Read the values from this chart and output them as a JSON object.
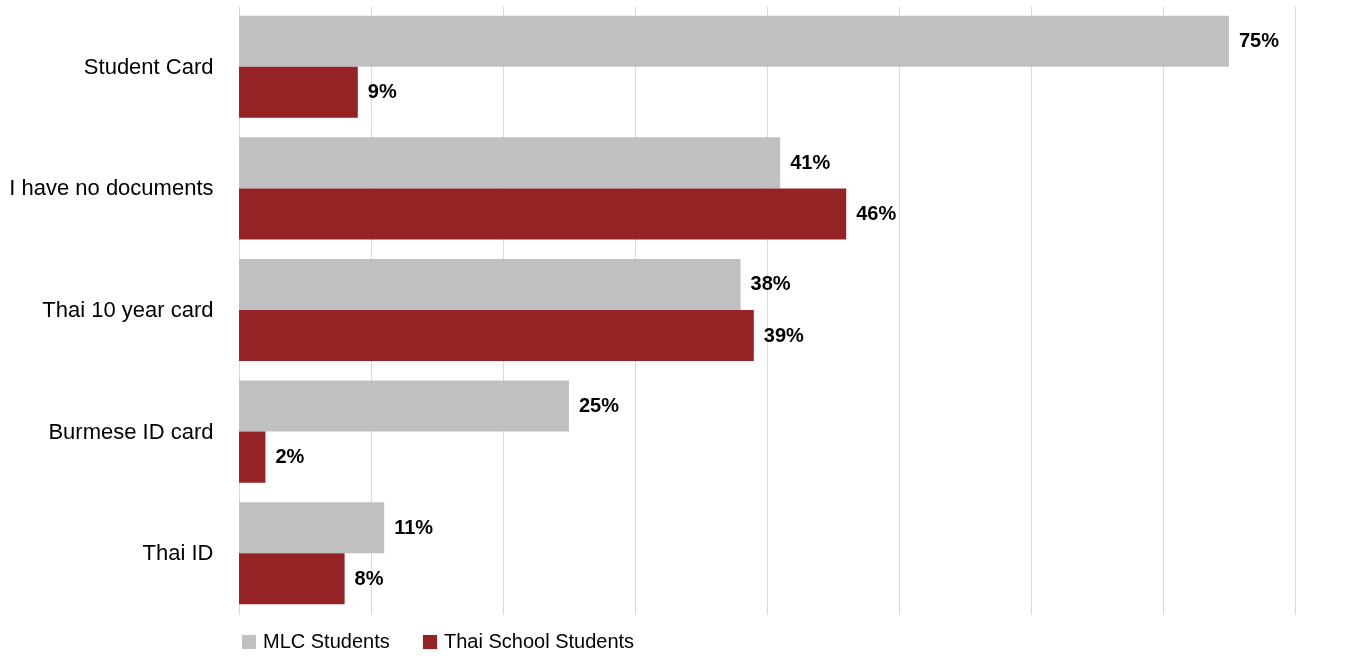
{
  "chart_data": {
    "type": "bar",
    "orientation": "horizontal",
    "categories": [
      "Student Card",
      "I have no documents",
      "Thai 10 year card",
      "Burmese ID card",
      "Thai ID"
    ],
    "series": [
      {
        "name": "MLC Students",
        "color": "#c0c0c0",
        "values": [
          75,
          41,
          38,
          25,
          11
        ],
        "value_labels": [
          "75%",
          "41%",
          "38%",
          "25%",
          "11%"
        ]
      },
      {
        "name": "Thai School Students",
        "color": "#952224",
        "values": [
          9,
          46,
          39,
          2,
          8
        ],
        "value_labels": [
          "9%",
          "46%",
          "39%",
          "2%",
          "8%"
        ]
      }
    ],
    "xlim": [
      0,
      80
    ],
    "xticks": [
      {
        "value": 0,
        "label": null
      },
      {
        "value": 10,
        "label": null
      },
      {
        "value": 20,
        "label": null
      },
      {
        "value": 30,
        "label": null
      },
      {
        "value": 40,
        "label": null
      },
      {
        "value": 50,
        "label": null
      },
      {
        "value": 60,
        "label": null
      },
      {
        "value": 70,
        "label": null
      },
      {
        "value": 80,
        "label": null
      }
    ],
    "grid": "x",
    "tick_labels": "y",
    "legend": "bottom"
  }
}
